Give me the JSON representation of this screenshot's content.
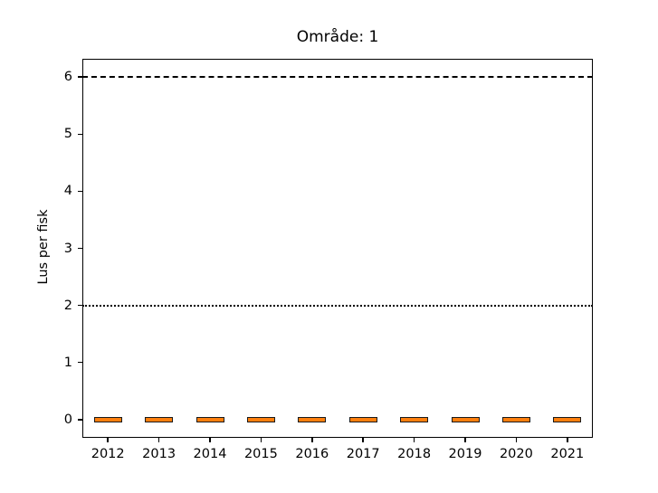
{
  "chart_data": {
    "type": "box",
    "title": "Område: 1",
    "xlabel": "",
    "ylabel": "Lus per fisk",
    "categories": [
      "2012",
      "2013",
      "2014",
      "2015",
      "2016",
      "2017",
      "2018",
      "2019",
      "2020",
      "2021"
    ],
    "series": [
      {
        "name": "Lus per fisk",
        "boxes": [
          {
            "year": "2012",
            "median": 0,
            "q1": 0,
            "q3": 0,
            "whislo": 0,
            "whishi": 0
          },
          {
            "year": "2013",
            "median": 0,
            "q1": 0,
            "q3": 0,
            "whislo": 0,
            "whishi": 0
          },
          {
            "year": "2014",
            "median": 0,
            "q1": 0,
            "q3": 0,
            "whislo": 0,
            "whishi": 0
          },
          {
            "year": "2015",
            "median": 0,
            "q1": 0,
            "q3": 0,
            "whislo": 0,
            "whishi": 0
          },
          {
            "year": "2016",
            "median": 0,
            "q1": 0,
            "q3": 0,
            "whislo": 0,
            "whishi": 0
          },
          {
            "year": "2017",
            "median": 0,
            "q1": 0,
            "q3": 0,
            "whislo": 0,
            "whishi": 0
          },
          {
            "year": "2018",
            "median": 0,
            "q1": 0,
            "q3": 0,
            "whislo": 0,
            "whishi": 0
          },
          {
            "year": "2019",
            "median": 0,
            "q1": 0,
            "q3": 0,
            "whislo": 0,
            "whishi": 0
          },
          {
            "year": "2020",
            "median": 0,
            "q1": 0,
            "q3": 0,
            "whislo": 0,
            "whishi": 0
          },
          {
            "year": "2021",
            "median": 0,
            "q1": 0,
            "q3": 0,
            "whislo": 0,
            "whishi": 0
          }
        ]
      }
    ],
    "yticks": [
      0,
      1,
      2,
      3,
      4,
      5,
      6
    ],
    "ylim": [
      -0.32,
      6.32
    ],
    "grid": false,
    "legend": null,
    "reference_lines": [
      {
        "y": 6,
        "style": "dashed",
        "color": "#000000"
      },
      {
        "y": 2,
        "style": "dotted",
        "color": "#000000"
      }
    ],
    "colors": {
      "median_line": "#ff7f0e",
      "box_edge": "#1a1a1a",
      "axis": "#000000",
      "background": "#ffffff"
    }
  }
}
